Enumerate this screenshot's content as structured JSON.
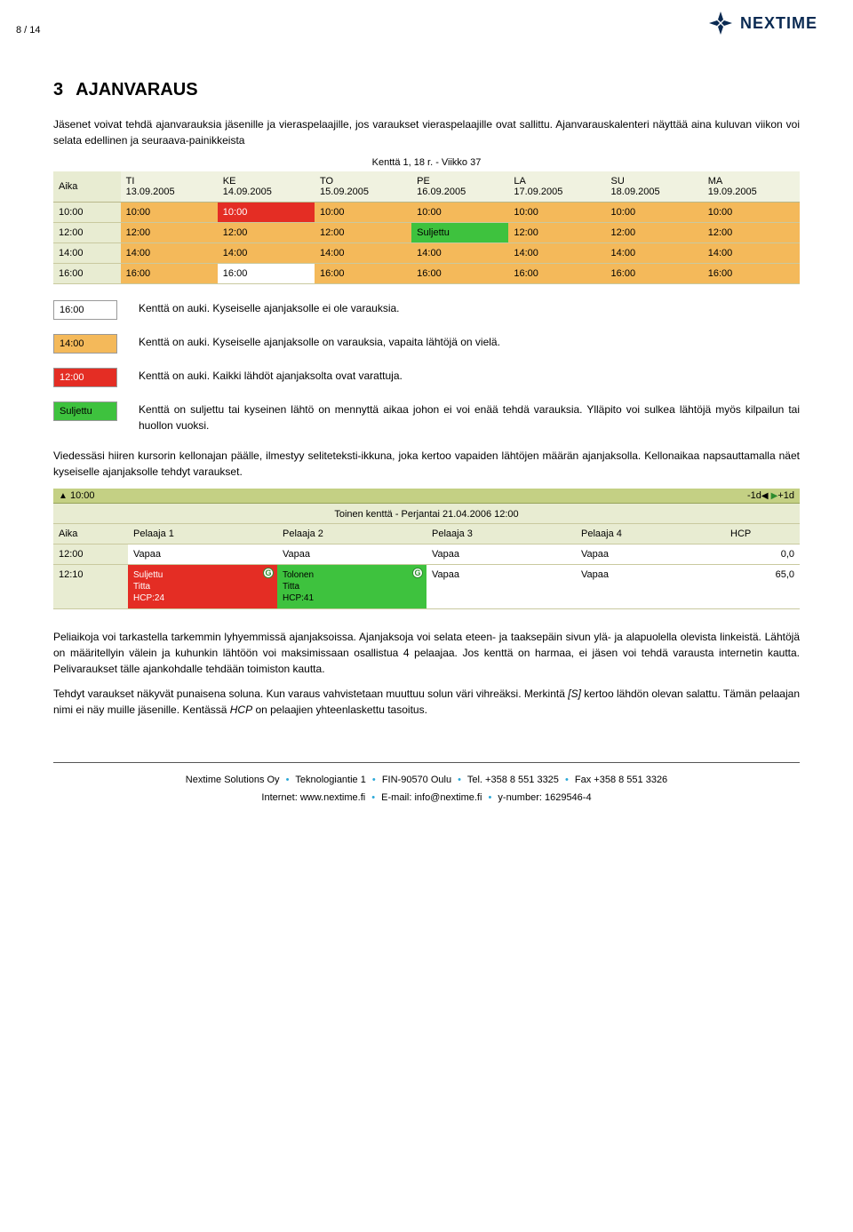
{
  "page_number": "8 / 14",
  "brand": "NEXTIME",
  "logo_color": "#0a2a52",
  "section": {
    "num": "3",
    "title": "AJANVARAUS"
  },
  "intro": "Jäsenet voivat tehdä ajanvarauksia jäsenille ja vieraspelaajille, jos varaukset vieraspelaajille ovat sallittu. Ajanvarauskalenteri näyttää aina kuluvan viikon voi selata edellinen ja seuraava-painikkeista",
  "calendar": {
    "title": "Kenttä 1, 18 r. - Viikko 37",
    "header_bg": "#f0f2e0",
    "time_col_bg": "#e8ecd2",
    "time_header": "Aika",
    "days": [
      {
        "dow": "TI",
        "date": "13.09.2005"
      },
      {
        "dow": "KE",
        "date": "14.09.2005"
      },
      {
        "dow": "TO",
        "date": "15.09.2005"
      },
      {
        "dow": "PE",
        "date": "16.09.2005"
      },
      {
        "dow": "LA",
        "date": "17.09.2005"
      },
      {
        "dow": "SU",
        "date": "18.09.2005"
      },
      {
        "dow": "MA",
        "date": "19.09.2005"
      }
    ],
    "rows": [
      {
        "time": "10:00",
        "cells": [
          {
            "t": "10:00",
            "bg": "#f4b95a"
          },
          {
            "t": "10:00",
            "bg": "#e42d24",
            "fg": "#ffffff"
          },
          {
            "t": "10:00",
            "bg": "#f4b95a"
          },
          {
            "t": "10:00",
            "bg": "#f4b95a"
          },
          {
            "t": "10:00",
            "bg": "#f4b95a"
          },
          {
            "t": "10:00",
            "bg": "#f4b95a"
          },
          {
            "t": "10:00",
            "bg": "#f4b95a"
          }
        ]
      },
      {
        "time": "12:00",
        "cells": [
          {
            "t": "12:00",
            "bg": "#f4b95a"
          },
          {
            "t": "12:00",
            "bg": "#f4b95a"
          },
          {
            "t": "12:00",
            "bg": "#f4b95a"
          },
          {
            "t": "Suljettu",
            "bg": "#3ec23e"
          },
          {
            "t": "12:00",
            "bg": "#f4b95a"
          },
          {
            "t": "12:00",
            "bg": "#f4b95a"
          },
          {
            "t": "12:00",
            "bg": "#f4b95a"
          }
        ]
      },
      {
        "time": "14:00",
        "cells": [
          {
            "t": "14:00",
            "bg": "#f4b95a"
          },
          {
            "t": "14:00",
            "bg": "#f4b95a"
          },
          {
            "t": "14:00",
            "bg": "#f4b95a"
          },
          {
            "t": "14:00",
            "bg": "#f4b95a"
          },
          {
            "t": "14:00",
            "bg": "#f4b95a"
          },
          {
            "t": "14:00",
            "bg": "#f4b95a"
          },
          {
            "t": "14:00",
            "bg": "#f4b95a"
          }
        ]
      },
      {
        "time": "16:00",
        "cells": [
          {
            "t": "16:00",
            "bg": "#f4b95a"
          },
          {
            "t": "16:00",
            "bg": "#ffffff"
          },
          {
            "t": "16:00",
            "bg": "#f4b95a"
          },
          {
            "t": "16:00",
            "bg": "#f4b95a"
          },
          {
            "t": "16:00",
            "bg": "#f4b95a"
          },
          {
            "t": "16:00",
            "bg": "#f4b95a"
          },
          {
            "t": "16:00",
            "bg": "#f4b95a"
          }
        ]
      }
    ]
  },
  "legend": [
    {
      "chip": "16:00",
      "bg": "#ffffff",
      "fg": "#000000",
      "desc": "Kenttä on auki. Kyseiselle ajanjaksolle ei ole varauksia."
    },
    {
      "chip": "14:00",
      "bg": "#f4b95a",
      "fg": "#000000",
      "desc": "Kenttä on auki. Kyseiselle ajanjaksolle on varauksia, vapaita lähtöjä on vielä."
    },
    {
      "chip": "12:00",
      "bg": "#e42d24",
      "fg": "#ffffff",
      "desc": "Kenttä on auki. Kaikki lähdöt ajanjaksolta ovat varattuja."
    },
    {
      "chip": "Suljettu",
      "bg": "#3ec23e",
      "fg": "#000000",
      "desc": "Kenttä on suljettu tai kyseinen lähtö on mennyttä aikaa johon ei voi enää tehdä varauksia. Ylläpito voi sulkea lähtöjä myös kilpailun tai huollon vuoksi."
    }
  ],
  "mid_para": "Viedessäsi hiiren kursorin kellonajan päälle, ilmestyy seliteteksti-ikkuna, joka kertoo vapaiden lähtöjen määrän ajanjaksolla. Kellonaikaa napsauttamalla näet kyseiselle ajanjaksolle tehdyt varaukset.",
  "detail": {
    "topbar_bg": "#c4d084",
    "top_left": "▲ 10:00",
    "top_left_time": "10:00",
    "nav_prev": "-1d",
    "nav_next": "+1d",
    "title": "Toinen kenttä - Perjantai 21.04.2006 12:00",
    "cols": [
      "Aika",
      "Pelaaja 1",
      "Pelaaja 2",
      "Pelaaja 3",
      "Pelaaja 4",
      "HCP"
    ],
    "rows": [
      {
        "time": "12:00",
        "cells": [
          {
            "t": "Vapaa",
            "bg": "#ffffff"
          },
          {
            "t": "Vapaa",
            "bg": "#ffffff"
          },
          {
            "t": "Vapaa",
            "bg": "#ffffff"
          },
          {
            "t": "Vapaa",
            "bg": "#ffffff"
          }
        ],
        "hcp": "0,0"
      },
      {
        "time": "12:10",
        "cells": [
          {
            "html": "Suljettu<br>Titta<br>HCP:24",
            "bg": "#e42d24",
            "class": "cell-closed",
            "gicon": true
          },
          {
            "html": "Tolonen<br>Titta<br>HCP:41",
            "bg": "#3ec23e",
            "class": "cell-green",
            "gicon": true
          },
          {
            "t": "Vapaa",
            "bg": "#ffffff"
          },
          {
            "t": "Vapaa",
            "bg": "#ffffff"
          }
        ],
        "hcp": "65,0"
      }
    ]
  },
  "para_after_detail": [
    "Peliaikoja voi tarkastella tarkemmin lyhyemmissä ajanjaksoissa. Ajanjaksoja voi selata eteen- ja taaksepäin sivun ylä- ja alapuolella olevista linkeistä. Lähtöjä on määritellyin välein ja kuhunkin lähtöön voi maksimissaan osallistua 4 pelaajaa. Jos kenttä on harmaa, ei jäsen voi tehdä varausta internetin kautta. Pelivaraukset tälle ajankohdalle tehdään toimiston kautta.",
    "Tehdyt varaukset näkyvät punaisena soluna. Kun varaus vahvistetaan muuttuu solun väri vihreäksi. Merkintä [S] kertoo lähdön olevan salattu. Tämän pelaajan nimi ei näy muille jäsenille. Kentässä HCP on pelaajien yhteenlaskettu tasoitus."
  ],
  "footer": {
    "line1_parts": [
      "Nextime Solutions Oy",
      "Teknologiantie 1",
      "FIN-90570 Oulu",
      "Tel. +358 8 551 3325",
      "Fax +358 8 551 3326"
    ],
    "line2_parts": [
      "Internet: www.nextime.fi",
      "E-mail: info@nextime.fi",
      "y-number: 1629546-4"
    ]
  }
}
